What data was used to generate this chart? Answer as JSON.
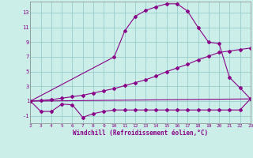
{
  "xlabel": "Windchill (Refroidissement éolien,°C)",
  "background_color": "#cceee8",
  "grid_color": "#99cccc",
  "line_color": "#880088",
  "xlim": [
    2,
    23
  ],
  "ylim": [
    -2.0,
    14.5
  ],
  "xticks": [
    2,
    3,
    4,
    5,
    6,
    7,
    8,
    9,
    10,
    11,
    12,
    13,
    14,
    15,
    16,
    17,
    18,
    19,
    20,
    21,
    22,
    23
  ],
  "yticks": [
    -1,
    1,
    3,
    5,
    7,
    9,
    11,
    13
  ],
  "line1_x": [
    2,
    3,
    4,
    5,
    6,
    7,
    8,
    9,
    10,
    11,
    12,
    13,
    14,
    15,
    16,
    17,
    18,
    19,
    20,
    21,
    22,
    23
  ],
  "line1_y": [
    1.0,
    -0.4,
    -0.4,
    0.6,
    0.5,
    -1.2,
    -0.7,
    -0.4,
    -0.2,
    -0.2,
    -0.2,
    -0.2,
    -0.2,
    -0.2,
    -0.2,
    -0.2,
    -0.2,
    -0.2,
    -0.2,
    -0.2,
    -0.2,
    1.3
  ],
  "line2_x": [
    2,
    3,
    4,
    5,
    6,
    7,
    8,
    9,
    10,
    11,
    12,
    13,
    14,
    15,
    16,
    17,
    18,
    19,
    20,
    21,
    22,
    23
  ],
  "line2_y": [
    1.0,
    1.1,
    1.2,
    1.4,
    1.6,
    1.8,
    2.1,
    2.4,
    2.7,
    3.1,
    3.5,
    3.9,
    4.4,
    5.0,
    5.5,
    6.0,
    6.6,
    7.1,
    7.6,
    7.8,
    8.0,
    8.2
  ],
  "line3_x": [
    2,
    10,
    11,
    12,
    13,
    14,
    15,
    16,
    17,
    18,
    19,
    20,
    21,
    22,
    23
  ],
  "line3_y": [
    1.0,
    7.0,
    10.5,
    12.5,
    13.3,
    13.8,
    14.2,
    14.2,
    13.2,
    11.0,
    9.0,
    8.8,
    4.2,
    2.8,
    1.3
  ],
  "line4_x": [
    2,
    23
  ],
  "line4_y": [
    1.0,
    1.3
  ]
}
